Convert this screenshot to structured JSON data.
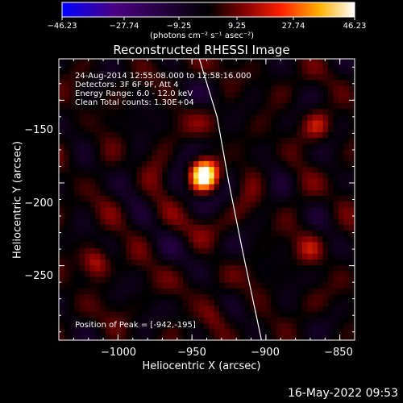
{
  "chart_data": {
    "type": "heatmap",
    "title": "Reconstructed RHESSI Image",
    "xlabel": "Heliocentric X (arcsec)",
    "ylabel": "Heliocentric Y (arcsec)",
    "xlim": [
      -1040,
      -840
    ],
    "ylim": [
      -295,
      -125
    ],
    "xticks": [
      -1000,
      -950,
      -900,
      -850
    ],
    "xtick_labels": [
      "−1000",
      "−950",
      "−900",
      "−850"
    ],
    "yticks": [
      -150,
      -200,
      -250
    ],
    "ytick_labels": [
      "−150",
      "−200",
      "−250"
    ],
    "colorbar": {
      "range": [
        -46.23,
        46.23
      ],
      "tick_values": [
        -46.23,
        -27.74,
        -9.25,
        9.25,
        27.74,
        46.23
      ],
      "tick_labels": [
        "−46.23",
        "−27.74",
        "−9.25",
        "9.25",
        "27.74",
        "46.23"
      ],
      "unit_label": "(photons cm⁻² s⁻¹ asec⁻²)",
      "colormap": [
        "#0000ff",
        "#4b0082",
        "#000000",
        "#7f0000",
        "#ff3000",
        "#ffcc00",
        "#ffffff"
      ]
    },
    "peak": {
      "x": -942,
      "y": -195,
      "value": 46.23
    },
    "sources": [
      {
        "x": -942,
        "y": -195,
        "value": 46.2
      },
      {
        "x": -1015,
        "y": -248,
        "value": 16
      },
      {
        "x": -865,
        "y": -165,
        "value": 14
      },
      {
        "x": -935,
        "y": -280,
        "value": 10
      },
      {
        "x": -870,
        "y": -240,
        "value": 11
      }
    ],
    "limb_curve": [
      [
        -945,
        -125
      ],
      [
        -933,
        -160
      ],
      [
        -925,
        -200
      ],
      [
        -916,
        -240
      ],
      [
        -903,
        -295
      ]
    ]
  },
  "annotations": {
    "time_range": "24-Aug-2014 12:55:08.000 to 12:58:16.000",
    "detectors": "Detectors: 3F 6F 9F, Att 4",
    "energy": "Energy Range: 6.0 - 12.0 keV",
    "clean": "Clean     Total counts: 1.30E+04",
    "peak_position": "Position of Peak = [-942,-195]"
  },
  "footer_timestamp": "16-May-2022 09:53"
}
